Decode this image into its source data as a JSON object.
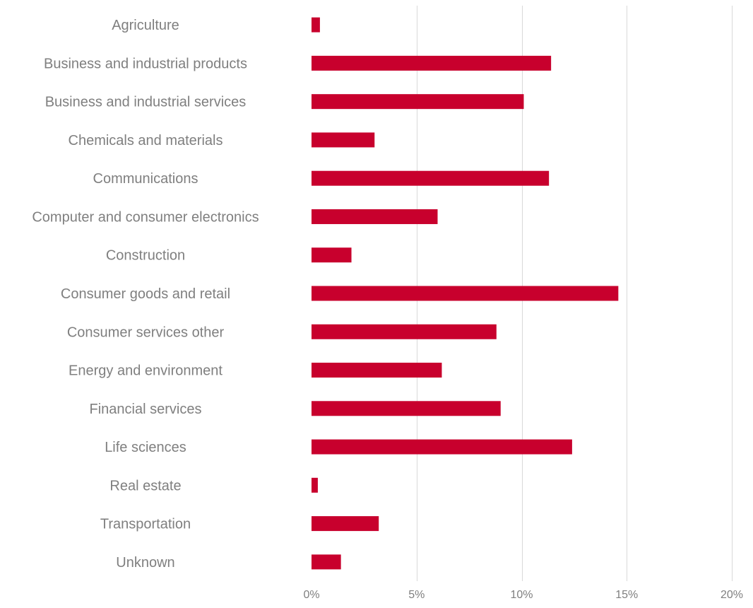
{
  "chart_data": {
    "type": "bar",
    "orientation": "horizontal",
    "categories": [
      "Agriculture",
      "Business and industrial products",
      "Business and industrial services",
      "Chemicals and materials",
      "Communications",
      "Computer and consumer electronics",
      "Construction",
      "Consumer goods and retail",
      "Consumer services other",
      "Energy and environment",
      "Financial services",
      "Life sciences",
      "Real estate",
      "Transportation",
      "Unknown"
    ],
    "values": [
      0.4,
      11.4,
      10.1,
      3.0,
      11.3,
      6.0,
      1.9,
      14.6,
      8.8,
      6.2,
      9.0,
      12.4,
      0.3,
      3.2,
      1.4
    ],
    "unit": "%",
    "xlim": [
      0,
      20
    ],
    "x_ticks": [
      0,
      5,
      10,
      15,
      20
    ],
    "x_tick_labels": [
      "0%",
      "5%",
      "10%",
      "15%",
      "20%"
    ],
    "grid": "vertical",
    "legend": "none",
    "bar_color": "#c8002d"
  }
}
